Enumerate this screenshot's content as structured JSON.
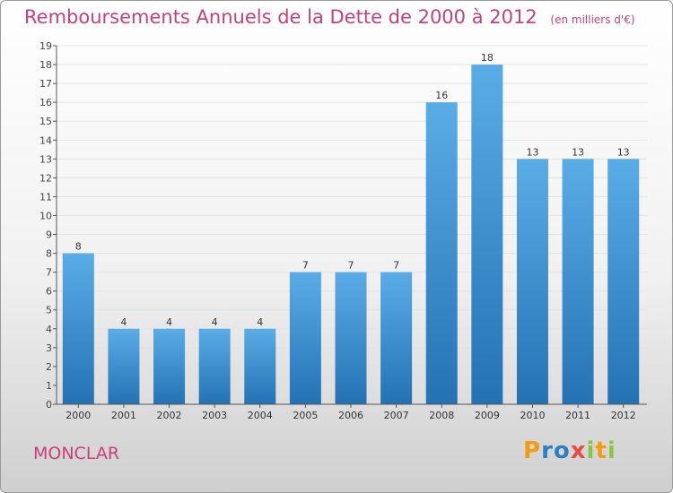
{
  "header": {
    "title": "Remboursements Annuels de la Dette de 2000 à 2012",
    "unit": "(en milliers d'€)"
  },
  "footer": {
    "town": "MONCLAR",
    "logo": {
      "letters": [
        "P",
        "r",
        "o",
        "x",
        "i",
        "t",
        "i"
      ],
      "colors": [
        "#f39c12",
        "#2e7fc1",
        "#2e7fc1",
        "#e74c3c",
        "#8cc63f",
        "#f39c12",
        "#8cc63f"
      ]
    }
  },
  "chart_data": {
    "type": "bar",
    "title": "Remboursements Annuels de la Dette de 2000 à 2012",
    "unit": "(en milliers d'€)",
    "categories": [
      "2000",
      "2001",
      "2002",
      "2003",
      "2004",
      "2005",
      "2006",
      "2007",
      "2008",
      "2009",
      "2010",
      "2011",
      "2012"
    ],
    "values": [
      8,
      4,
      4,
      4,
      4,
      7,
      7,
      7,
      16,
      18,
      13,
      13,
      13
    ],
    "ylim": [
      0,
      19
    ],
    "yticks": [
      0,
      1,
      2,
      3,
      4,
      5,
      6,
      7,
      8,
      9,
      10,
      11,
      12,
      13,
      14,
      15,
      16,
      17,
      18,
      19
    ],
    "grid": true,
    "colors": {
      "bar_top": "#5aace6",
      "bar_bottom": "#2472b4",
      "title": "#c8407a",
      "axis": "#555555"
    }
  }
}
